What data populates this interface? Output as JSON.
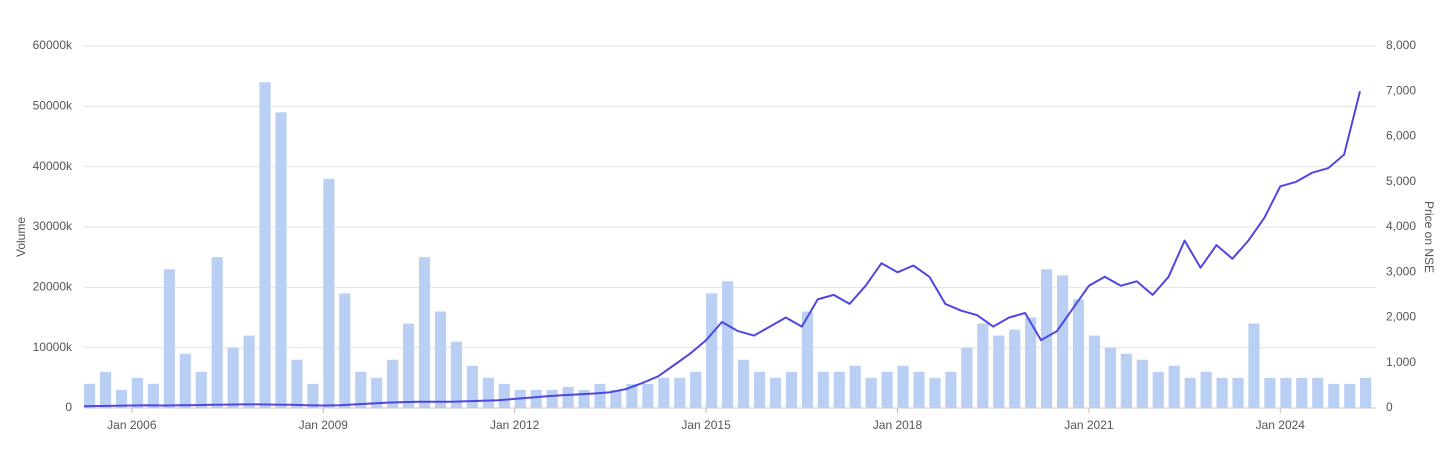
{
  "chart_data": {
    "type": "bar-line",
    "x": [
      "2005-04",
      "2005-07",
      "2005-10",
      "2006-01",
      "2006-04",
      "2006-07",
      "2006-10",
      "2007-01",
      "2007-04",
      "2007-07",
      "2007-10",
      "2008-01",
      "2008-04",
      "2008-07",
      "2008-10",
      "2009-01",
      "2009-04",
      "2009-07",
      "2009-10",
      "2010-01",
      "2010-04",
      "2010-07",
      "2010-10",
      "2011-01",
      "2011-04",
      "2011-07",
      "2011-10",
      "2012-01",
      "2012-04",
      "2012-07",
      "2012-10",
      "2013-01",
      "2013-04",
      "2013-07",
      "2013-10",
      "2014-01",
      "2014-04",
      "2014-07",
      "2014-10",
      "2015-01",
      "2015-04",
      "2015-07",
      "2015-10",
      "2016-01",
      "2016-04",
      "2016-07",
      "2016-10",
      "2017-01",
      "2017-04",
      "2017-07",
      "2017-10",
      "2018-01",
      "2018-04",
      "2018-07",
      "2018-10",
      "2019-01",
      "2019-04",
      "2019-07",
      "2019-10",
      "2020-01",
      "2020-04",
      "2020-07",
      "2020-10",
      "2021-01",
      "2021-04",
      "2021-07",
      "2021-10",
      "2022-01",
      "2022-04",
      "2022-07",
      "2022-10",
      "2023-01",
      "2023-04",
      "2023-07",
      "2023-10",
      "2024-01",
      "2024-04",
      "2024-07",
      "2024-10",
      "2025-01",
      "2025-04"
    ],
    "xlim": [
      "2005-04",
      "2025-07"
    ],
    "xticks": [
      {
        "value": "2006-01",
        "label": "Jan 2006"
      },
      {
        "value": "2009-01",
        "label": "Jan 2009"
      },
      {
        "value": "2012-01",
        "label": "Jan 2012"
      },
      {
        "value": "2015-01",
        "label": "Jan 2015"
      },
      {
        "value": "2018-01",
        "label": "Jan 2018"
      },
      {
        "value": "2021-01",
        "label": "Jan 2021"
      },
      {
        "value": "2024-01",
        "label": "Jan 2024"
      }
    ],
    "ylabel": "Volume",
    "y2label": "Price on NSE",
    "ylim": [
      0,
      60000
    ],
    "yticks": [
      0,
      {
        "value": 10000,
        "label": "10000k"
      },
      {
        "value": 20000,
        "label": "20000k"
      },
      {
        "value": 30000,
        "label": "30000k"
      },
      {
        "value": 40000,
        "label": "40000k"
      },
      {
        "value": 50000,
        "label": "50000k"
      },
      {
        "value": 60000,
        "label": "60000k"
      }
    ],
    "y2lim": [
      0,
      8000
    ],
    "y2ticks": [
      0,
      {
        "value": 1000,
        "label": "1,000"
      },
      {
        "value": 2000,
        "label": "2,000"
      },
      {
        "value": 3000,
        "label": "3,000"
      },
      {
        "value": 4000,
        "label": "4,000"
      },
      {
        "value": 5000,
        "label": "5,000"
      },
      {
        "value": 6000,
        "label": "6,000"
      },
      {
        "value": 7000,
        "label": "7,000"
      },
      {
        "value": 8000,
        "label": "8,000"
      }
    ],
    "grid": true,
    "series": [
      {
        "type": "bar",
        "color": "#b9cff4",
        "values": [
          4000,
          6000,
          3000,
          5000,
          4000,
          23000,
          9000,
          6000,
          25000,
          10000,
          12000,
          54000,
          49000,
          8000,
          4000,
          38000,
          19000,
          6000,
          5000,
          8000,
          14000,
          25000,
          16000,
          11000,
          7000,
          5000,
          4000,
          3000,
          3000,
          3000,
          3500,
          3000,
          4000,
          3000,
          4000,
          4000,
          5000,
          5000,
          6000,
          19000,
          21000,
          8000,
          6000,
          5000,
          6000,
          16000,
          6000,
          6000,
          7000,
          5000,
          6000,
          7000,
          6000,
          5000,
          6000,
          10000,
          14000,
          12000,
          13000,
          15000,
          23000,
          22000,
          18000,
          12000,
          10000,
          9000,
          8000,
          6000,
          7000,
          5000,
          6000,
          5000,
          5000,
          14000,
          5000,
          5000,
          5000,
          5000,
          4000,
          4000,
          5000
        ]
      },
      {
        "type": "line",
        "axis": "y2",
        "color": "#5046e0",
        "values": [
          40,
          45,
          50,
          55,
          60,
          55,
          60,
          65,
          70,
          75,
          80,
          80,
          75,
          70,
          60,
          55,
          60,
          80,
          100,
          120,
          130,
          140,
          140,
          140,
          150,
          160,
          170,
          200,
          230,
          260,
          280,
          300,
          320,
          350,
          420,
          550,
          700,
          950,
          1200,
          1500,
          1900,
          1700,
          1600,
          1800,
          2000,
          1800,
          2400,
          2500,
          2300,
          2700,
          3200,
          3000,
          3150,
          2900,
          2300,
          2150,
          2050,
          1800,
          2000,
          2100,
          1500,
          1700,
          2200,
          2700,
          2900,
          2700,
          2800,
          2500,
          2900,
          3700,
          3100,
          3600,
          3300,
          3700,
          4200,
          4900,
          5000,
          5200,
          5300,
          5600,
          7000
        ]
      }
    ]
  }
}
